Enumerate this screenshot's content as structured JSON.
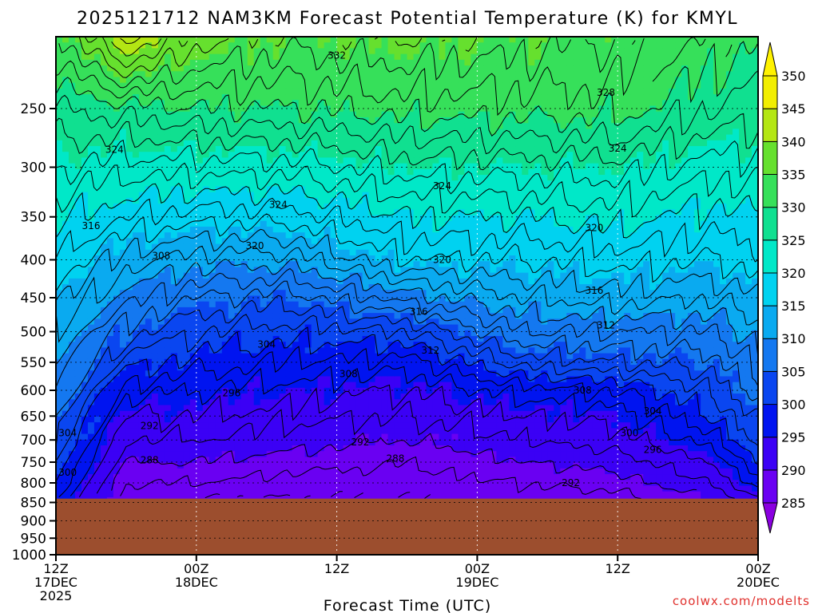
{
  "chart_data": {
    "type": "heatmap",
    "title": "2025121712 NAM3KM Forecast Potential Temperature (K) for KMYL",
    "xlabel": "Forecast Time (UTC)",
    "ylabel": "",
    "y_scale": "log-pressure",
    "ylim": [
      1000,
      200
    ],
    "xlim_hours": [
      0,
      60
    ],
    "yticks": [
      250,
      300,
      350,
      400,
      450,
      500,
      550,
      600,
      650,
      700,
      750,
      800,
      850,
      900,
      950,
      1000
    ],
    "ytick_labels": [
      "250",
      "300",
      "350",
      "400",
      "450",
      "500",
      "550",
      "600",
      "650",
      "700",
      "750",
      "800",
      "850",
      "900",
      "950",
      "1000"
    ],
    "xticks": [
      {
        "hour": 0,
        "line1": "12Z",
        "line2": "17DEC",
        "line3": "2025"
      },
      {
        "hour": 12,
        "line1": "00Z",
        "line2": "18DEC",
        "line3": ""
      },
      {
        "hour": 24,
        "line1": "12Z",
        "line2": "",
        "line3": ""
      },
      {
        "hour": 36,
        "line1": "00Z",
        "line2": "19DEC",
        "line3": ""
      },
      {
        "hour": 48,
        "line1": "12Z",
        "line2": "",
        "line3": ""
      },
      {
        "hour": 60,
        "line1": "00Z",
        "line2": "20DEC",
        "line3": ""
      }
    ],
    "grid": true,
    "surface_pressure_hPa": 840,
    "colorbar": {
      "levels": [
        285,
        290,
        295,
        300,
        305,
        310,
        315,
        320,
        325,
        330,
        335,
        340,
        345,
        350
      ],
      "labels": [
        "285",
        "290",
        "295",
        "300",
        "305",
        "310",
        "315",
        "320",
        "325",
        "330",
        "335",
        "340",
        "345",
        "350"
      ],
      "colors": [
        "#8a00e0",
        "#6a00f2",
        "#3b00f5",
        "#0014f0",
        "#0a46f0",
        "#1478f0",
        "#0aaaf0",
        "#00d2f0",
        "#00e8c8",
        "#10e090",
        "#36e05a",
        "#66e02e",
        "#b4e614",
        "#f2ee00",
        "#fff200"
      ]
    },
    "theta_profile_hPa_vs_K": {
      "pressure": [
        840,
        800,
        750,
        700,
        650,
        600,
        550,
        500,
        450,
        400,
        350,
        300,
        250,
        200
      ],
      "hour_0": [
        298,
        300,
        302,
        304,
        306,
        308,
        310,
        312,
        315,
        318,
        321,
        324,
        328,
        333
      ],
      "hour_6": [
        287,
        288,
        290,
        292,
        294,
        297,
        301,
        305,
        309,
        313,
        318,
        323,
        329,
        343
      ],
      "hour_12": [
        286,
        288,
        290,
        292,
        294,
        296,
        299,
        302,
        306,
        311,
        317,
        323,
        330,
        337
      ],
      "hour_20": [
        286,
        287,
        289,
        291,
        293,
        295,
        298,
        301,
        305,
        311,
        317,
        323,
        330,
        335
      ],
      "hour_30": [
        286,
        287,
        288,
        290,
        292,
        294,
        297,
        302,
        309,
        316,
        320,
        325,
        331,
        336
      ],
      "hour_40": [
        287,
        288,
        290,
        292,
        294,
        297,
        303,
        308,
        312,
        316,
        320,
        325,
        331,
        335
      ],
      "hour_48": [
        287,
        289,
        291,
        293,
        295,
        298,
        304,
        308,
        313,
        317,
        321,
        325,
        331,
        334
      ],
      "hour_56": [
        290,
        292,
        294,
        297,
        300,
        302,
        305,
        308,
        312,
        316,
        319,
        323,
        328,
        332
      ],
      "hour_60": [
        294,
        297,
        300,
        303,
        305,
        307,
        309,
        311,
        314,
        317,
        320,
        323,
        327,
        330
      ]
    },
    "contour_labels": [
      {
        "text": "332",
        "hour": 24,
        "p": 212
      },
      {
        "text": "328",
        "hour": 47,
        "p": 238
      },
      {
        "text": "324",
        "hour": 5,
        "p": 284
      },
      {
        "text": "324",
        "hour": 48,
        "p": 283
      },
      {
        "text": "324",
        "hour": 19,
        "p": 337
      },
      {
        "text": "324",
        "hour": 33,
        "p": 318
      },
      {
        "text": "320",
        "hour": 17,
        "p": 383
      },
      {
        "text": "320",
        "hour": 46,
        "p": 362
      },
      {
        "text": "320",
        "hour": 33,
        "p": 400
      },
      {
        "text": "316",
        "hour": 3,
        "p": 360
      },
      {
        "text": "316",
        "hour": 31,
        "p": 470
      },
      {
        "text": "316",
        "hour": 46,
        "p": 440
      },
      {
        "text": "312",
        "hour": 32,
        "p": 530
      },
      {
        "text": "312",
        "hour": 47,
        "p": 490
      },
      {
        "text": "308",
        "hour": 9,
        "p": 395
      },
      {
        "text": "308",
        "hour": 25,
        "p": 570
      },
      {
        "text": "308",
        "hour": 45,
        "p": 600
      },
      {
        "text": "304",
        "hour": 18,
        "p": 520
      },
      {
        "text": "304",
        "hour": 51,
        "p": 640
      },
      {
        "text": "304",
        "hour": 1,
        "p": 685
      },
      {
        "text": "300",
        "hour": 49,
        "p": 685
      },
      {
        "text": "300",
        "hour": 1,
        "p": 775
      },
      {
        "text": "296",
        "hour": 15,
        "p": 605
      },
      {
        "text": "296",
        "hour": 51,
        "p": 722
      },
      {
        "text": "292",
        "hour": 8,
        "p": 670
      },
      {
        "text": "292",
        "hour": 26,
        "p": 705
      },
      {
        "text": "292",
        "hour": 44,
        "p": 800
      },
      {
        "text": "288",
        "hour": 8,
        "p": 745
      },
      {
        "text": "288",
        "hour": 29,
        "p": 742
      }
    ]
  },
  "credit": "coolwx.com/modelts"
}
